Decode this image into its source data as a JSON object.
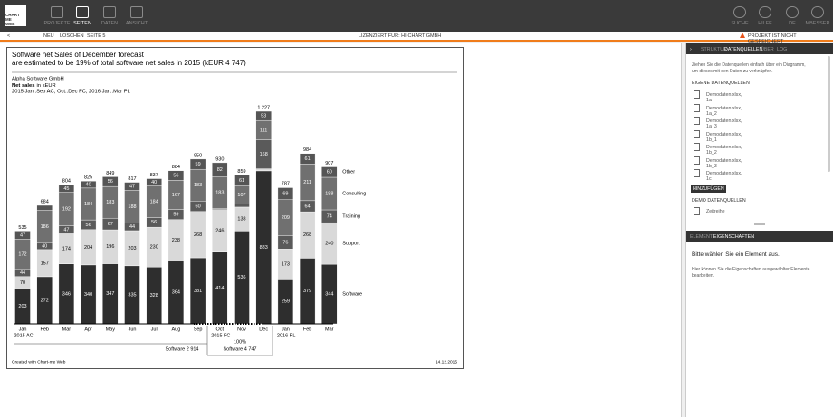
{
  "app": {
    "logo": "CHART ME WEB",
    "nav": [
      "PROJEKTE",
      "SEITEN",
      "DATEN",
      "ANSICHT"
    ],
    "nav_right": [
      "SUCHE",
      "HILFE",
      "DE",
      "MBESSER"
    ]
  },
  "toolbar": {
    "back": "<",
    "items": [
      "NEU",
      "LÖSCHEN",
      "SEITE 5"
    ],
    "license": "LIZENZIERT FÜR: HI-CHART GMBH",
    "status": "PROJEKT IST NICHT GESPEICHERT"
  },
  "chart_data": {
    "type": "bar",
    "stacked": true,
    "title": [
      "Software net Sales of December forecast",
      "are estimated to be 19% of total software net sales in 2015 (kEUR 4 747)"
    ],
    "company": "Alpha Software GmbH",
    "measure": "Net sales",
    "unit": "in kEUR",
    "period": "2015 Jan..Sep AC, Oct..Dec FC, 2016 Jan..Mar PL",
    "categories": [
      "Jan",
      "Feb",
      "Mar",
      "Apr",
      "May",
      "Jun",
      "Jul",
      "Aug",
      "Sep",
      "Oct",
      "Nov",
      "Dec",
      "Jan",
      "Feb",
      "Mar"
    ],
    "sublabels": [
      "2015 AC",
      null,
      null,
      null,
      null,
      null,
      null,
      null,
      null,
      "2015 FC",
      null,
      null,
      "2016 PL",
      null,
      null
    ],
    "series": [
      {
        "name": "Software",
        "color": "#2e2e2e",
        "values": [
          203,
          272,
          346,
          340,
          347,
          335,
          328,
          364,
          381,
          414,
          536,
          883,
          259,
          379,
          344
        ]
      },
      {
        "name": "Support",
        "color": "#d9d9d9",
        "values": [
          70,
          157,
          174,
          204,
          196,
          203,
          230,
          238,
          268,
          246,
          138,
          12,
          173,
          268,
          240
        ]
      },
      {
        "name": "Training",
        "color": "#5a5a5a",
        "values": [
          44,
          40,
          47,
          56,
          67,
          44,
          56,
          59,
          60,
          5,
          17,
          168,
          76,
          64,
          74
        ]
      },
      {
        "name": "Consulting",
        "color": "#707070",
        "values": [
          172,
          186,
          192,
          184,
          183,
          188,
          184,
          167,
          183,
          183,
          107,
          111,
          209,
          211,
          188
        ]
      },
      {
        "name": "Other",
        "color": "#555555",
        "values": [
          47,
          29,
          45,
          40,
          56,
          47,
          40,
          56,
          59,
          82,
          61,
          53,
          69,
          61,
          60
        ]
      }
    ],
    "totals": [
      535,
      684,
      804,
      825,
      849,
      817,
      837,
      884,
      950,
      930,
      859,
      1227,
      787,
      984,
      907
    ],
    "totals_labels": [
      "535",
      "684",
      "804",
      "825",
      "849",
      "817",
      "837",
      "884",
      "950",
      "930",
      "859",
      "1 227",
      "787",
      "984",
      "907"
    ],
    "annotations": [
      "Software 2 914",
      "100%",
      "Software 4 747"
    ],
    "footer": "Created with Chart-me Web",
    "date": "14.12.2015"
  },
  "sidebar": {
    "tabs": [
      "STRUKTUR",
      "DATENQUELLEN",
      "ÜBER",
      "LOG"
    ],
    "intro": [
      "Ziehen Sie die Datenquellen einfach über ein Diagramm,",
      "um dieses mit den Daten zu verknüpfen."
    ],
    "own_heading": "EIGENE DATENQUELLEN",
    "files": [
      "Demodaten.xlsx, 1a",
      "Demodaten.xlsx, 1a_2",
      "Demodaten.xlsx, 1a_3",
      "Demodaten.xlsx, 1b_1",
      "Demodaten.xlsx, 1b_2",
      "Demodaten.xlsx, 1b_3",
      "Demodaten.xlsx, 1c"
    ],
    "add": "HINZUFÜGEN",
    "demo_heading": "DEMO DATENQUELLEN",
    "demo": "Zeitreihe",
    "tabs2": [
      "ELEMENTE",
      "EIGENSCHAFTEN"
    ],
    "prompt": "Bitte wählen Sie ein Element aus.",
    "hint": [
      "Hier können Sie die Eigenschaften ausgewählter Elemente",
      "bearbeiten."
    ]
  }
}
